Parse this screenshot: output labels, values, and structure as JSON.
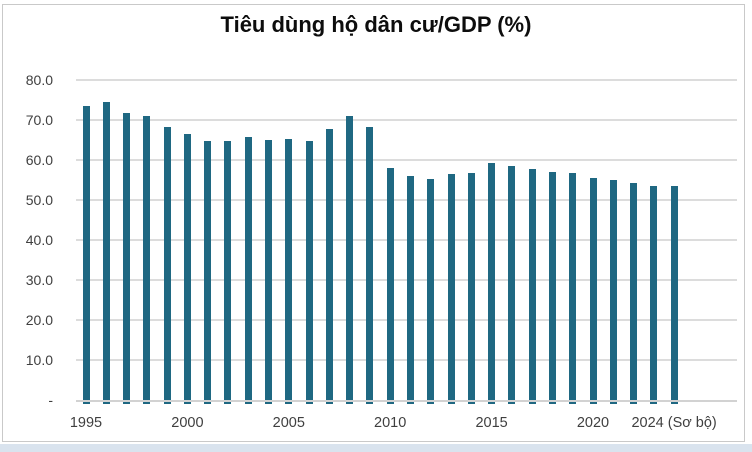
{
  "page": {
    "background_color": "#ffffff",
    "frame_border_color": "#c9c9c9",
    "bottom_band_color": "#d9e3ee"
  },
  "chart_data": {
    "type": "bar",
    "title": "Tiêu dùng hộ dân cư/GDP (%)",
    "xlabel": "",
    "ylabel": "",
    "ylim": [
      0,
      80
    ],
    "y_tick_step": 10,
    "grid": true,
    "legend": "none",
    "bar_color": "#1f6882",
    "gridline_color": "#dcdcdc",
    "axis_line_color": "#d2d2d2",
    "label_color": "#3f3f3f",
    "title_color": "#0d0d0d",
    "categories": [
      "1995",
      "1996",
      "1997",
      "1998",
      "1999",
      "2000",
      "2001",
      "2002",
      "2003",
      "2004",
      "2005",
      "2006",
      "2007",
      "2008",
      "2009",
      "2010",
      "2011",
      "2012",
      "2013",
      "2014",
      "2015",
      "2016",
      "2017",
      "2018",
      "2019",
      "2020",
      "2021",
      "2022",
      "2023",
      "2024"
    ],
    "values": [
      73.5,
      74.4,
      71.7,
      70.9,
      68.2,
      66.4,
      64.7,
      64.8,
      65.8,
      64.9,
      65.3,
      64.8,
      67.8,
      70.9,
      68.3,
      58.0,
      56.0,
      55.2,
      56.6,
      56.8,
      59.2,
      58.5,
      57.7,
      56.9,
      56.7,
      55.5,
      54.9,
      54.3,
      53.6,
      53.4
    ],
    "y_ticks": [
      {
        "value": 80,
        "label": "80.0"
      },
      {
        "value": 70,
        "label": "70.0"
      },
      {
        "value": 60,
        "label": "60.0"
      },
      {
        "value": 50,
        "label": "50.0"
      },
      {
        "value": 40,
        "label": "40.0"
      },
      {
        "value": 30,
        "label": "30.0"
      },
      {
        "value": 20,
        "label": "20.0"
      },
      {
        "value": 10,
        "label": "10.0"
      },
      {
        "value": 0,
        "label": "-"
      }
    ],
    "x_ticks": [
      {
        "index": 0,
        "label": "1995"
      },
      {
        "index": 5,
        "label": "2000"
      },
      {
        "index": 10,
        "label": "2005"
      },
      {
        "index": 15,
        "label": "2010"
      },
      {
        "index": 20,
        "label": "2015"
      },
      {
        "index": 25,
        "label": "2020"
      },
      {
        "index": 29,
        "label": "2024 (Sơ bộ)"
      }
    ]
  }
}
